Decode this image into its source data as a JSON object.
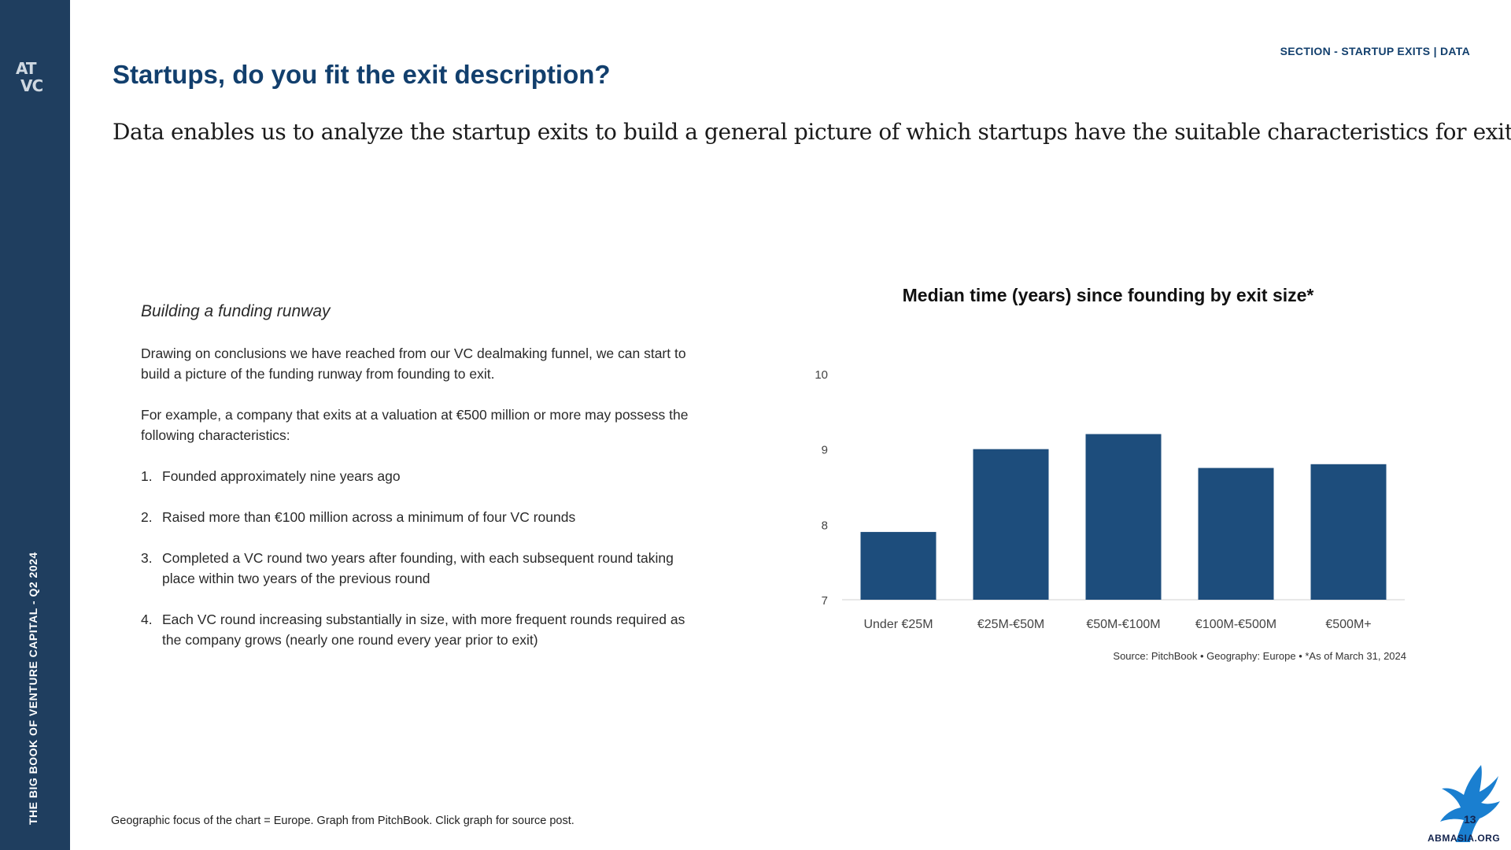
{
  "sidebar": {
    "logo_text_line1": "AT",
    "logo_text_line2": "VC",
    "vertical_title": "THE BIG BOOK OF VENTURE CAPITAL - Q2 2024"
  },
  "header": {
    "section_label": "SECTION - STARTUP EXITS | DATA",
    "title": "Startups, do you fit the exit description?",
    "subtitle": "Data enables us to analyze the startup exits to build a general picture of which startups have the suitable characteristics for exit."
  },
  "left_panel": {
    "heading": "Building a funding runway",
    "para1": "Drawing on conclusions we have reached from our VC dealmaking funnel, we can start to build a picture of the funding runway from founding to exit.",
    "para2": "For example, a company that exits at a valuation at €500 million or more may possess the following characteristics:",
    "items": [
      {
        "num": "1.",
        "text": "Founded approximately nine years ago"
      },
      {
        "num": "2.",
        "text": "Raised more than €100 million across a minimum of four VC rounds"
      },
      {
        "num": "3.",
        "text": "Completed a VC round two years after founding, with each subsequent round taking place within two years of the previous round"
      },
      {
        "num": "4.",
        "text": "Each VC round increasing substantially in size, with more frequent rounds required as the company grows (nearly one round every year prior to exit)"
      }
    ]
  },
  "chart_data": {
    "type": "bar",
    "title": "Median time (years) since founding by exit size*",
    "categories": [
      "Under €25M",
      "€25M-€50M",
      "€50M-€100M",
      "€100M-€500M",
      "€500M+"
    ],
    "values": [
      7.9,
      9.0,
      9.2,
      8.75,
      8.8
    ],
    "ylim": [
      7,
      10
    ],
    "yticks": [
      "7",
      "8",
      "9",
      "10"
    ],
    "xlabel": "",
    "ylabel": "",
    "grid": false,
    "bar_color": "#1d4d7c",
    "source": "Source: PitchBook  •  Geography: Europe  •  *As of March 31, 2024"
  },
  "footnote": "Geographic focus of the chart = Europe. Graph from PitchBook. Click graph for source post.",
  "watermark": {
    "text": "ABMASIA.ORG",
    "badge": "13"
  },
  "colors": {
    "sidebar": "#1f3e5f",
    "title": "#123f6d",
    "bar": "#1d4d7c"
  }
}
